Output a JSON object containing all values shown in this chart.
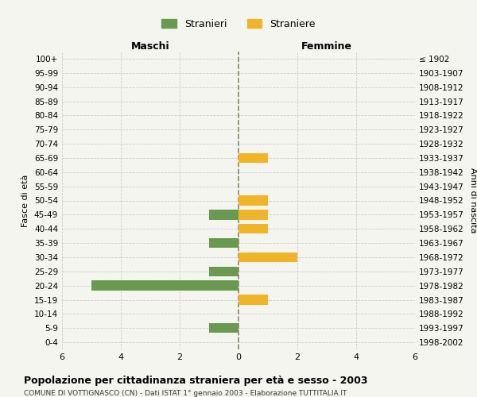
{
  "age_groups": [
    "100+",
    "95-99",
    "90-94",
    "85-89",
    "80-84",
    "75-79",
    "70-74",
    "65-69",
    "60-64",
    "55-59",
    "50-54",
    "45-49",
    "40-44",
    "35-39",
    "30-34",
    "25-29",
    "20-24",
    "15-19",
    "10-14",
    "5-9",
    "0-4"
  ],
  "birth_years": [
    "≤ 1902",
    "1903-1907",
    "1908-1912",
    "1913-1917",
    "1918-1922",
    "1923-1927",
    "1928-1932",
    "1933-1937",
    "1938-1942",
    "1943-1947",
    "1948-1952",
    "1953-1957",
    "1958-1962",
    "1963-1967",
    "1968-1972",
    "1973-1977",
    "1978-1982",
    "1983-1987",
    "1988-1992",
    "1993-1997",
    "1998-2002"
  ],
  "maschi": [
    0,
    0,
    0,
    0,
    0,
    0,
    0,
    0,
    0,
    0,
    0,
    -1,
    0,
    -1,
    0,
    -1,
    -5,
    0,
    0,
    -1,
    0
  ],
  "femmine": [
    0,
    0,
    0,
    0,
    0,
    0,
    0,
    1,
    0,
    0,
    1,
    1,
    1,
    0,
    2,
    0,
    0,
    1,
    0,
    0,
    0
  ],
  "stranieri_color": "#6a9a50",
  "straniere_color": "#f0b429",
  "background_color": "#f5f5f0",
  "title": "Popolazione per cittadinanza straniera per età e sesso - 2003",
  "subtitle": "COMUNE DI VOTTIGNASCO (CN) - Dati ISTAT 1° gennaio 2003 - Elaborazione TUTTITALIA.IT",
  "xlabel_left": "Maschi",
  "xlabel_right": "Femmine",
  "ylabel_left": "Fasce di età",
  "ylabel_right": "Anni di nascita",
  "legend_stranieri": "Stranieri",
  "legend_straniere": "Straniere",
  "xlim": [
    -6,
    6
  ],
  "xticks": [
    -6,
    -4,
    -2,
    0,
    2,
    4,
    6
  ],
  "xtick_labels": [
    "6",
    "4",
    "2",
    "0",
    "2",
    "4",
    "6"
  ],
  "bar_height": 0.7,
  "grid_color": "#cccccc",
  "dashed_line_color": "#8a8a6a"
}
